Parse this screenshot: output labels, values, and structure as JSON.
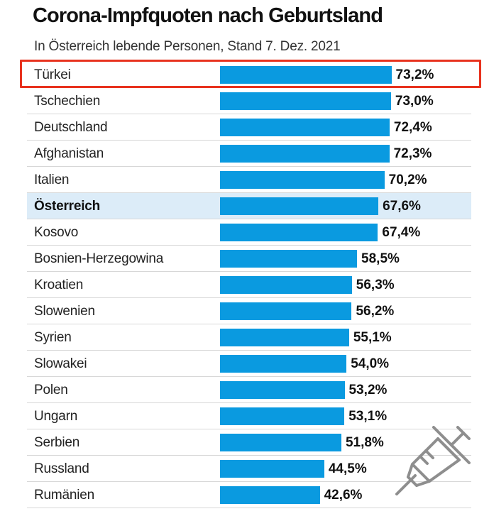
{
  "chart_data": {
    "type": "bar",
    "orientation": "horizontal",
    "title": "Corona-Impfquoten nach Geburtsland",
    "subtitle": "In Österreich lebende Personen, Stand 7. Dez. 2021",
    "categories": [
      "Türkei",
      "Tschechien",
      "Deutschland",
      "Afghanistan",
      "Italien",
      "Österreich",
      "Kosovo",
      "Bosnien-Herzegowina",
      "Kroatien",
      "Slowenien",
      "Syrien",
      "Slowakei",
      "Polen",
      "Ungarn",
      "Serbien",
      "Russland",
      "Rumänien"
    ],
    "values": [
      73.2,
      73.0,
      72.4,
      72.3,
      70.2,
      67.6,
      67.4,
      58.5,
      56.3,
      56.2,
      55.1,
      54.0,
      53.2,
      53.1,
      51.8,
      44.5,
      42.6
    ],
    "value_labels": [
      "73,2%",
      "73,0%",
      "72,4%",
      "72,3%",
      "70,2%",
      "67,6%",
      "67,4%",
      "58,5%",
      "56,3%",
      "56,2%",
      "55,1%",
      "54,0%",
      "53,2%",
      "53,1%",
      "51,8%",
      "44,5%",
      "42,6%"
    ],
    "xlim": [
      0,
      100
    ],
    "highlighted_category": "Österreich",
    "marked_category": "Türkei",
    "bar_color": "#0a9ae0",
    "highlight_color": "#dcecf8",
    "marker_color": "#e8321e",
    "grid": false,
    "legend": "none"
  },
  "decoration": {
    "icon": "syringe-icon",
    "icon_color": "#8e8e8e"
  }
}
